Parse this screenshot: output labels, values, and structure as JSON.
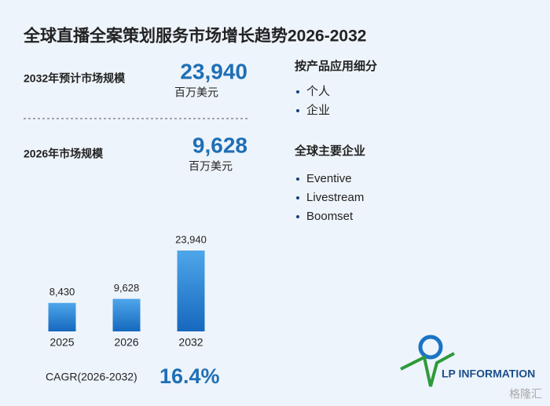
{
  "title": "全球直播全案策划服务市场增长趋势2026-2032",
  "market_2032": {
    "label": "2032年预计市场规模",
    "value": "23,940",
    "unit": "百万美元"
  },
  "market_2026": {
    "label": "2026年市场规模",
    "value": "9,628",
    "unit": "百万美元"
  },
  "segments": {
    "title": "按产品应用细分",
    "items": [
      "个人",
      "企业"
    ]
  },
  "companies": {
    "title": "全球主要企业",
    "items": [
      "Eventive",
      "Livestream",
      "Boomset"
    ]
  },
  "cagr": {
    "label": "CAGR(2026-2032)",
    "value": "16.4%"
  },
  "logo": "LP INFORMATION",
  "watermark": "格隆汇",
  "chart_data": {
    "type": "bar",
    "categories": [
      "2025",
      "2026",
      "2032"
    ],
    "values": [
      8430,
      9628,
      23940
    ],
    "value_labels": [
      "8,430",
      "9,628",
      "23,940"
    ],
    "color_top": "#4ea6ea",
    "color_bottom": "#1668bd"
  }
}
